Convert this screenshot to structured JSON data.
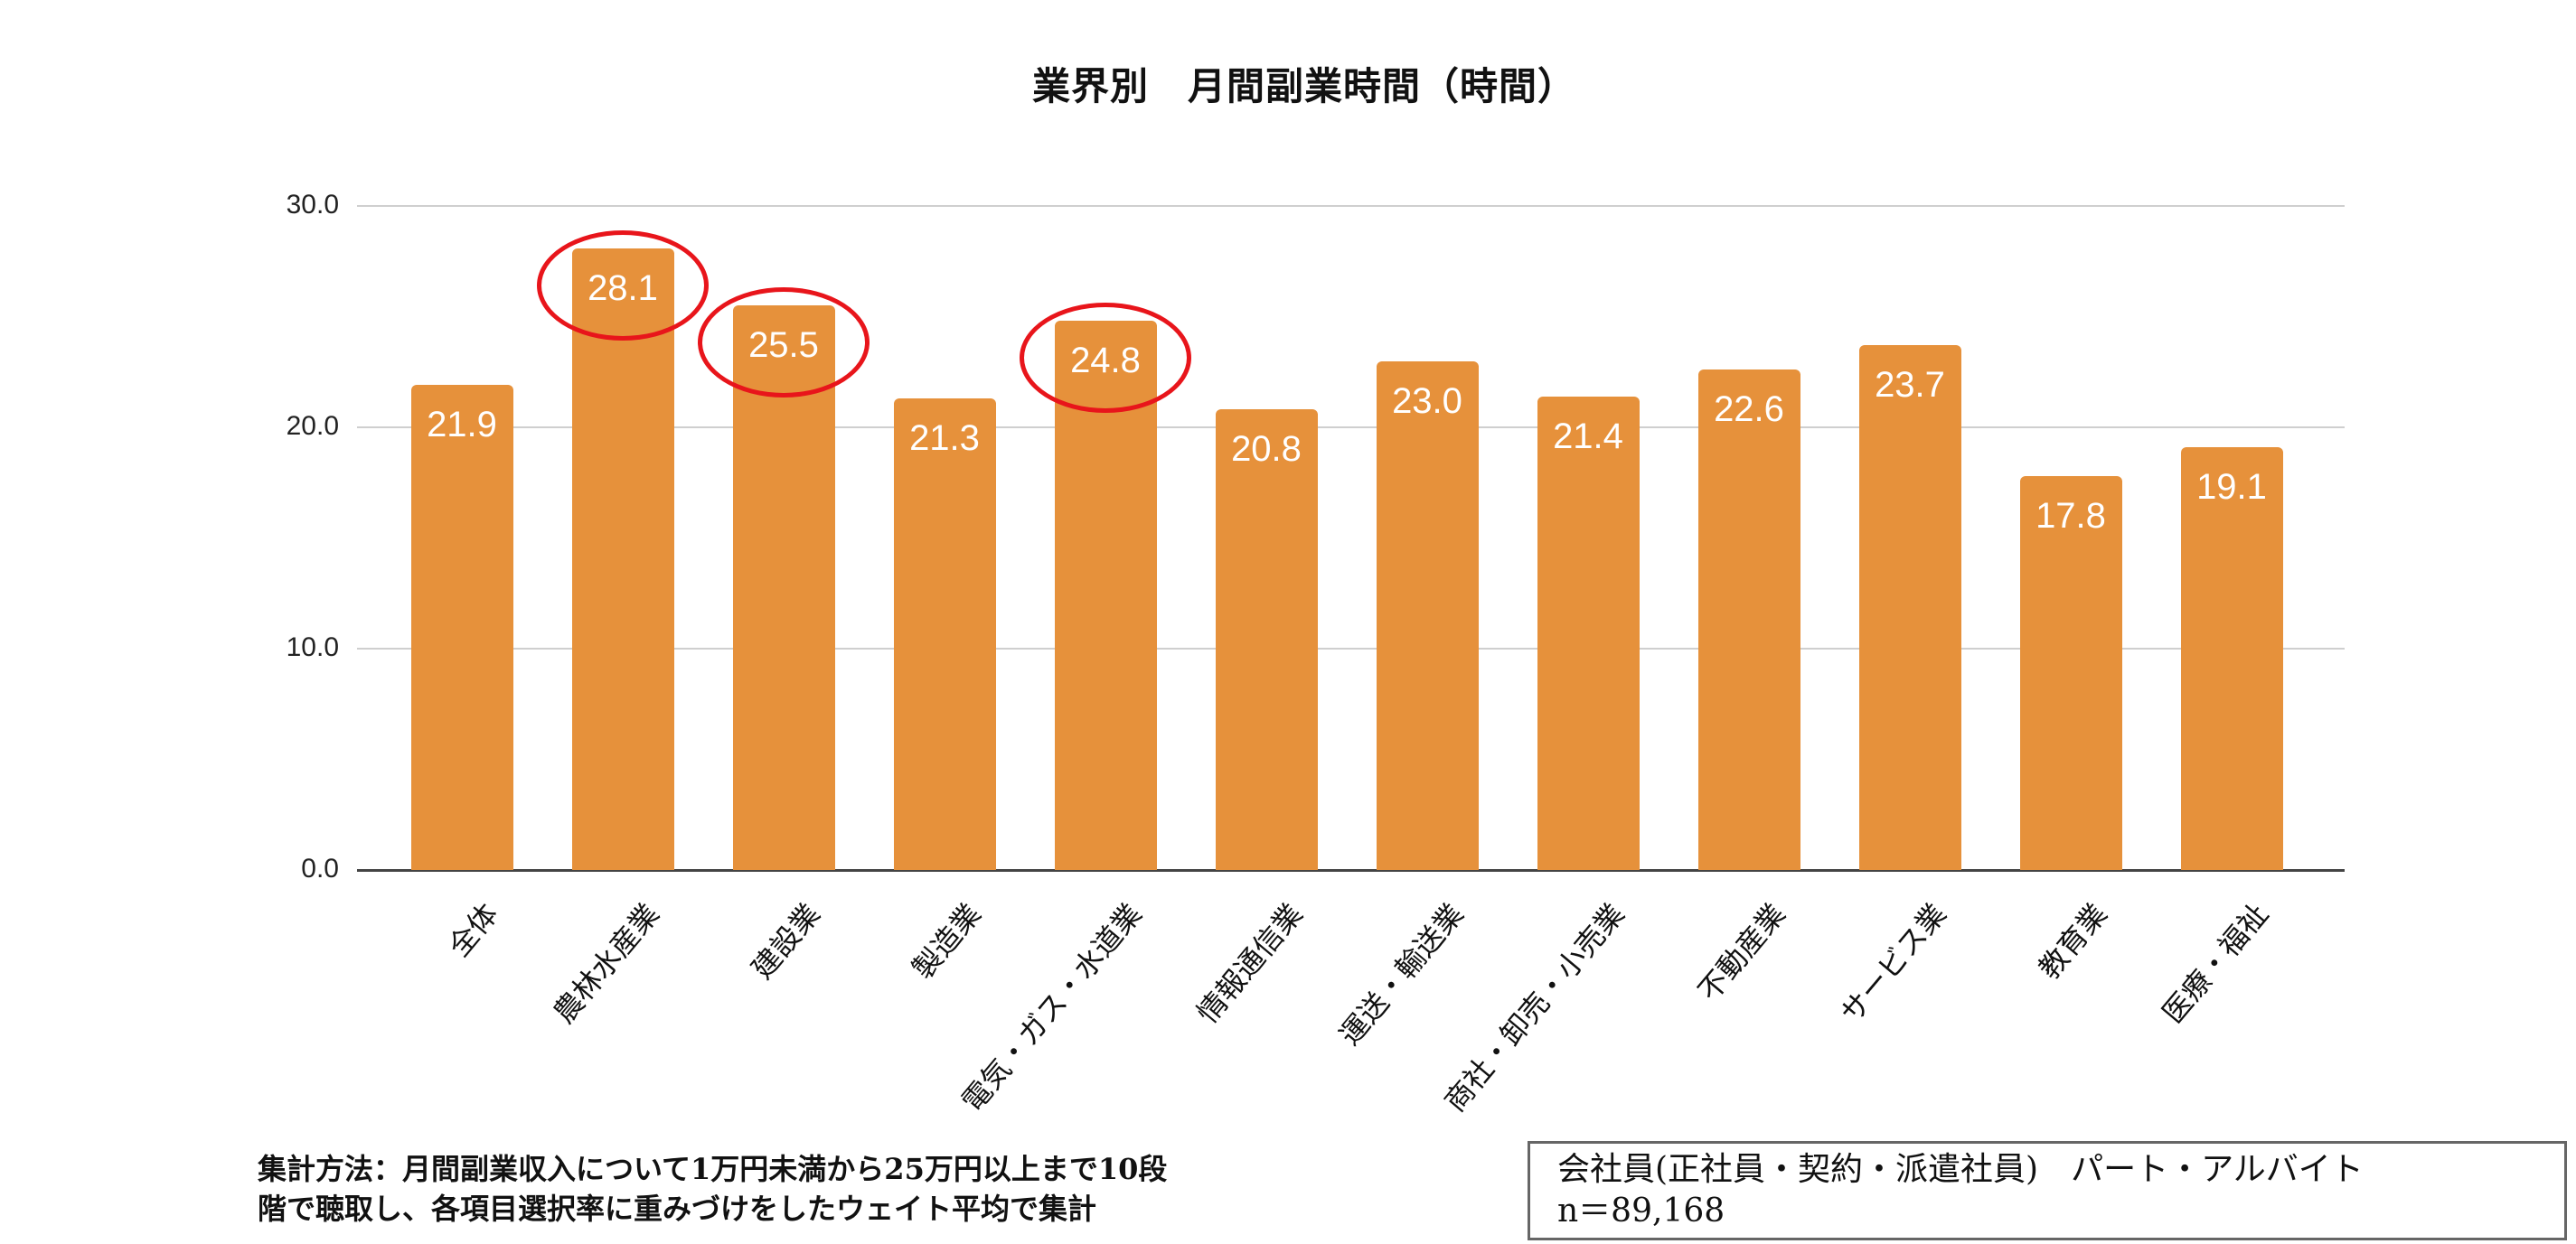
{
  "title": "業界別　月間副業時間（時間）",
  "note": {
    "line1": "集計方法：月間副業収入について1万円未満から25万円以上まで10段",
    "line2": "階で聴取し、各項目選択率に重みづけをしたウェイト平均で集計"
  },
  "legend_box": {
    "line1": "会社員(正社員・契約・派遣社員)　パート・アルバイト",
    "line2": "n＝89,168"
  },
  "colors": {
    "bar": "#e6913b",
    "highlight": "#e8151b",
    "grid": "#cfcfcf",
    "axis": "#444444"
  },
  "chart_data": {
    "type": "bar",
    "title": "業界別　月間副業時間（時間）",
    "xlabel": "",
    "ylabel": "",
    "ylim": [
      0,
      30
    ],
    "yticks": [
      "0.0",
      "10.0",
      "20.0",
      "30.0"
    ],
    "grid": true,
    "legend": "none",
    "categories": [
      "全体",
      "農林水産業",
      "建設業",
      "製造業",
      "電気・ガス・水道業",
      "情報通信業",
      "運送・輸送業",
      "商社・卸売・小売業",
      "不動産業",
      "サービス業",
      "教育業",
      "医療・福祉"
    ],
    "values": [
      21.9,
      28.1,
      25.5,
      21.3,
      24.8,
      20.8,
      23.0,
      21.4,
      22.6,
      23.7,
      17.8,
      19.1
    ],
    "value_labels": [
      "21.9",
      "28.1",
      "25.5",
      "21.3",
      "24.8",
      "20.8",
      "23.0",
      "21.4",
      "22.6",
      "23.7",
      "17.8",
      "19.1"
    ],
    "highlighted": [
      "農林水産業",
      "建設業",
      "電気・ガス・水道業"
    ],
    "annotations": [
      "red ellipse around 28.1",
      "red ellipse around 25.5",
      "red ellipse around 24.8"
    ]
  }
}
